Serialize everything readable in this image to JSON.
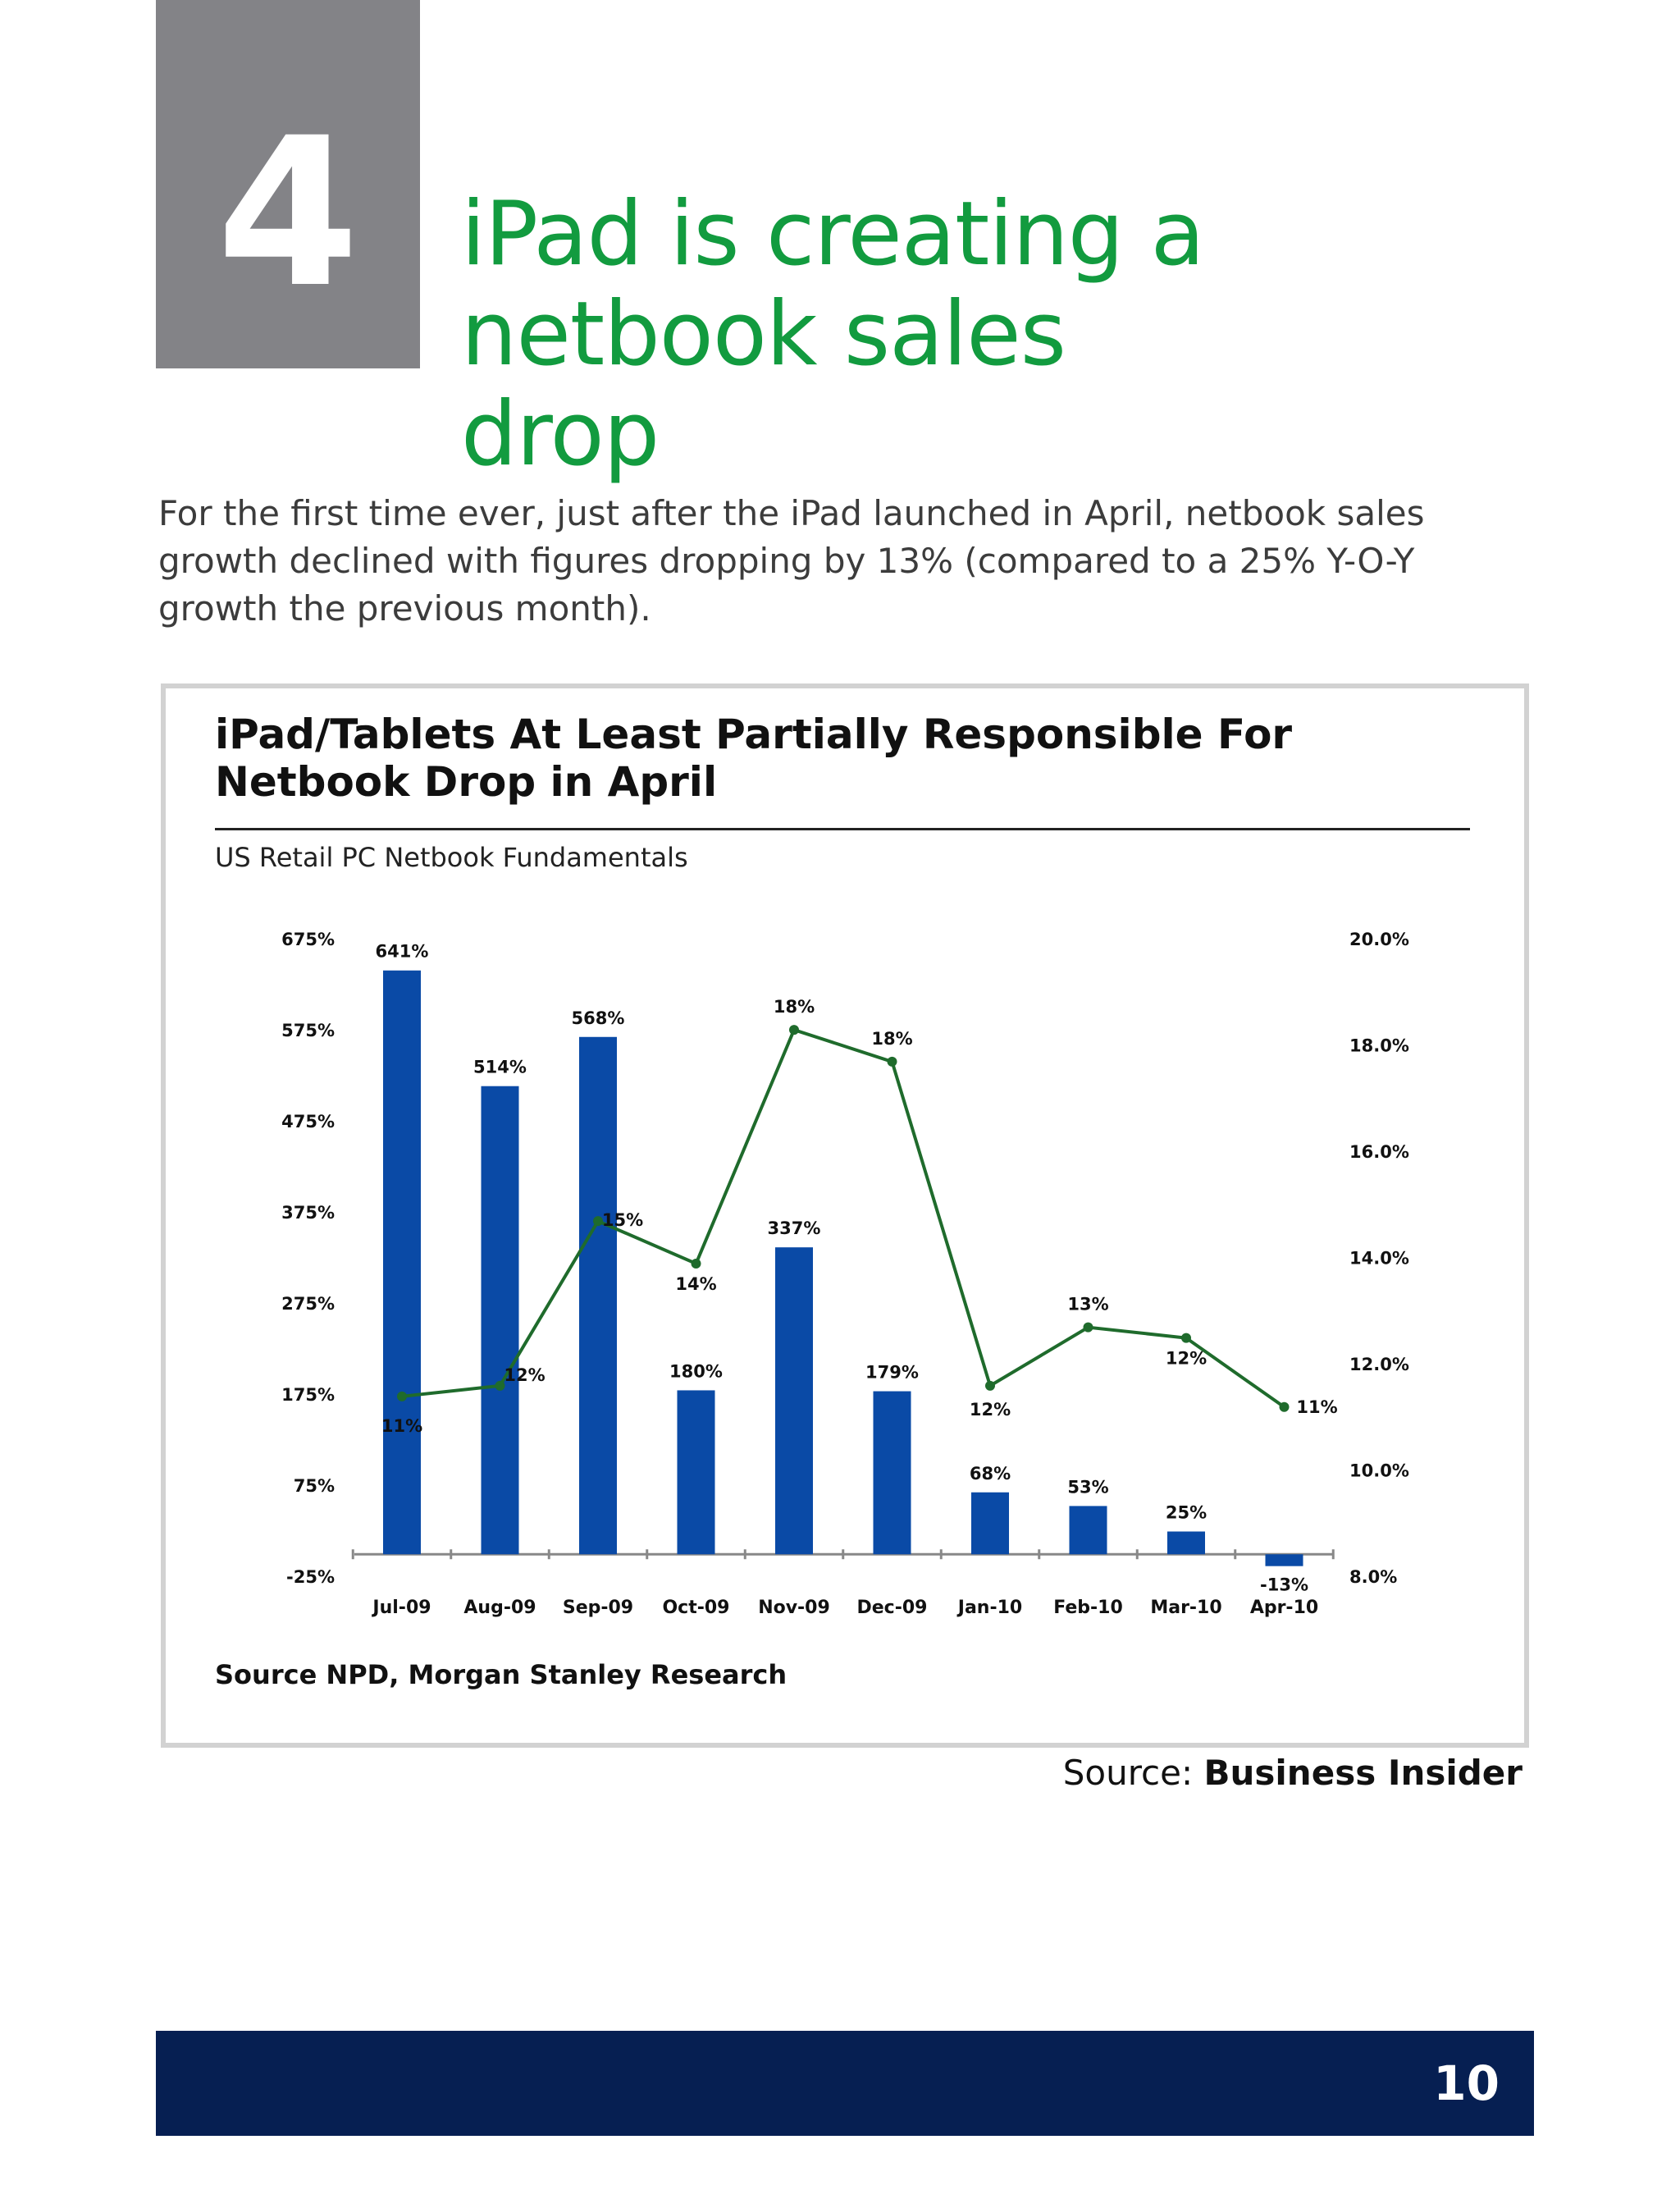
{
  "section": {
    "number": "4"
  },
  "headline": {
    "line1": "iPad is creating a",
    "line2": "netbook sales drop"
  },
  "intro": "For the first time ever, just after the iPad launched in April, netbook sales growth declined with figures dropping by 13% (compared to a 25% Y-O-Y growth the previous month).",
  "figure": {
    "title_line1": "iPad/Tablets At Least Partially Responsible For",
    "title_line2": "Netbook Drop in April",
    "subtitle": "US Retail PC Netbook Fundamentals",
    "source": "Source NPD, Morgan Stanley Research"
  },
  "credit": {
    "prefix": "Source: ",
    "name": "Business Insider"
  },
  "footer": {
    "page": "10"
  },
  "colors": {
    "headline": "#129b3f",
    "bar": "#0a4aa6",
    "line": "#1f6b2c",
    "footer": "#061f52",
    "section_box": "#838387"
  },
  "chart_data": {
    "type": "bar",
    "categories": [
      "Jul-09",
      "Aug-09",
      "Sep-09",
      "Oct-09",
      "Nov-09",
      "Dec-09",
      "Jan-10",
      "Feb-10",
      "Mar-10",
      "Apr-10"
    ],
    "series": [
      {
        "type": "bar",
        "axis": "left",
        "values": [
          641,
          514,
          568,
          180,
          337,
          179,
          68,
          53,
          25,
          -13
        ],
        "labels": [
          "641%",
          "514%",
          "568%",
          "180%",
          "337%",
          "179%",
          "68%",
          "53%",
          "25%",
          "-13%"
        ]
      },
      {
        "type": "line",
        "axis": "right",
        "values": [
          11.4,
          11.6,
          14.7,
          13.9,
          18.3,
          17.7,
          11.6,
          12.7,
          12.5,
          11.2
        ],
        "labels": [
          "11%",
          "12%",
          "15%",
          "14%",
          "18%",
          "18%",
          "12%",
          "13%",
          "12%",
          "11%"
        ]
      }
    ],
    "y_left": {
      "ticks": [
        -25,
        75,
        175,
        275,
        375,
        475,
        575,
        675
      ],
      "tick_labels": [
        "-25%",
        "75%",
        "175%",
        "275%",
        "375%",
        "475%",
        "575%",
        "675%"
      ],
      "ylim": [
        -25,
        675
      ]
    },
    "y_right": {
      "ticks": [
        8,
        10,
        12,
        14,
        16,
        18,
        20
      ],
      "tick_labels": [
        "8.0%",
        "10.0%",
        "12.0%",
        "14.0%",
        "16.0%",
        "18.0%",
        "20.0%"
      ],
      "ylim": [
        8,
        20
      ]
    },
    "grid": false,
    "legend": "none"
  }
}
